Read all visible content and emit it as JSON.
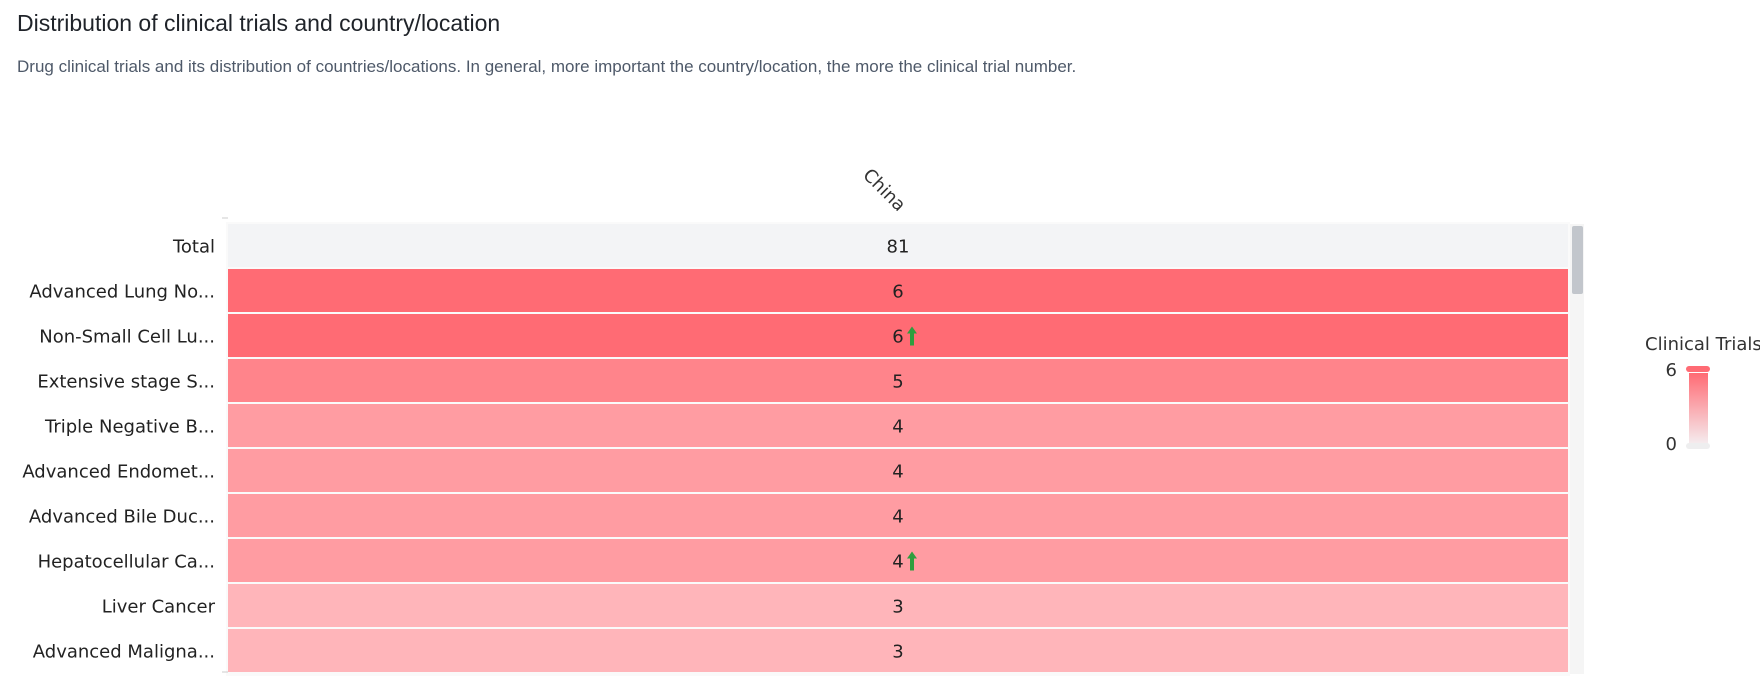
{
  "header": {
    "title": "Distribution of clinical trials and country/location",
    "subtitle": "Drug clinical trials and its distribution of countries/locations. In general, more important the country/location, the more the clinical trial number."
  },
  "chart_data": {
    "type": "heatmap",
    "columns": [
      "China"
    ],
    "total": {
      "label": "Total",
      "value": "81"
    },
    "rows": [
      {
        "label": "Advanced Lung No...",
        "value": 6,
        "trend_up": false
      },
      {
        "label": "Non-Small Cell Lu...",
        "value": 6,
        "trend_up": true
      },
      {
        "label": "Extensive stage S...",
        "value": 5,
        "trend_up": false
      },
      {
        "label": "Triple Negative B...",
        "value": 4,
        "trend_up": false
      },
      {
        "label": "Advanced Endomet...",
        "value": 4,
        "trend_up": false
      },
      {
        "label": "Advanced Bile Duc...",
        "value": 4,
        "trend_up": false
      },
      {
        "label": "Hepatocellular Ca...",
        "value": 4,
        "trend_up": true
      },
      {
        "label": "Liver Cancer",
        "value": 3,
        "trend_up": false
      },
      {
        "label": "Advanced Maligna...",
        "value": 3,
        "trend_up": false
      }
    ],
    "legend": {
      "title": "Clinical Trials",
      "min": 0,
      "max": 6,
      "placement": "right"
    },
    "colors": {
      "max": "#ff6b74",
      "min": "#ffffff",
      "total_bg": "#f3f4f6",
      "trend_up": "#2e9e3e",
      "scrollbar": "#c2c6cc"
    }
  }
}
